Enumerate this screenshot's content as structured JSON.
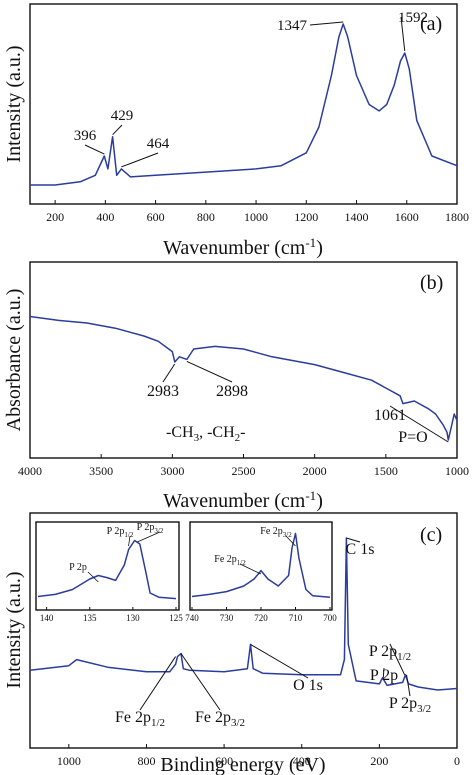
{
  "chart_data": [
    {
      "panel": "(a)",
      "type": "line",
      "title": "",
      "xlabel": "Wavenumber (cm",
      "xlabel_sup": "-1",
      "xlabel_end": ")",
      "ylabel": "Intensity (a.u.)",
      "xlim": [
        100,
        1800
      ],
      "xticks": [
        200,
        400,
        600,
        800,
        1000,
        1200,
        1400,
        1600,
        1800
      ],
      "grid": false,
      "series": [
        {
          "x": [
            100,
            200,
            300,
            360,
            396,
            410,
            429,
            445,
            464,
            500,
            600,
            800,
            1000,
            1100,
            1200,
            1250,
            1300,
            1330,
            1347,
            1365,
            1400,
            1450,
            1490,
            1520,
            1550,
            1575,
            1592,
            1610,
            1640,
            1700,
            1800
          ],
          "y": [
            0.0,
            0.0,
            0.02,
            0.06,
            0.18,
            0.1,
            0.3,
            0.06,
            0.1,
            0.05,
            0.06,
            0.08,
            0.1,
            0.12,
            0.2,
            0.36,
            0.68,
            0.92,
            1.0,
            0.92,
            0.68,
            0.5,
            0.46,
            0.5,
            0.62,
            0.77,
            0.82,
            0.72,
            0.4,
            0.18,
            0.12
          ]
        }
      ],
      "annotations": [
        {
          "text": "396",
          "x": 396,
          "y": 0.18
        },
        {
          "text": "429",
          "x": 429,
          "y": 0.3
        },
        {
          "text": "464",
          "x": 464,
          "y": 0.1
        },
        {
          "text": "1347",
          "x": 1347,
          "y": 1.0
        },
        {
          "text": "1592",
          "x": 1592,
          "y": 0.82
        }
      ]
    },
    {
      "panel": "(b)",
      "type": "line",
      "title": "",
      "xlabel": "Wavenumber (cm",
      "xlabel_sup": "-1",
      "xlabel_end": ")",
      "ylabel": "Absorbance (a.u.)",
      "xlim": [
        4000,
        1000
      ],
      "xticks": [
        4000,
        3500,
        3000,
        2500,
        2000,
        1500,
        1000
      ],
      "grid": false,
      "series": [
        {
          "x": [
            4000,
            3800,
            3600,
            3400,
            3200,
            3100,
            3000,
            2983,
            2950,
            2898,
            2850,
            2700,
            2500,
            2300,
            2000,
            1800,
            1600,
            1500,
            1400,
            1380,
            1300,
            1200,
            1150,
            1100,
            1070,
            1061,
            1040,
            1020,
            1000
          ],
          "y": [
            0.95,
            0.92,
            0.9,
            0.86,
            0.8,
            0.76,
            0.68,
            0.6,
            0.64,
            0.62,
            0.7,
            0.72,
            0.7,
            0.64,
            0.58,
            0.52,
            0.46,
            0.4,
            0.34,
            0.28,
            0.3,
            0.24,
            0.2,
            0.12,
            0.06,
            0.0,
            0.1,
            0.2,
            0.15
          ]
        }
      ],
      "annotations": [
        {
          "text": "2983",
          "x": 2983,
          "y": 0.6
        },
        {
          "text": "2898",
          "x": 2898,
          "y": 0.62
        },
        {
          "text": "1061",
          "x": 1061,
          "y": 0.0
        },
        {
          "text": "P=O",
          "x": 1150,
          "y": 0.0
        },
        {
          "text": "-CH",
          "sub1": "3",
          "mid": ", -CH",
          "sub2": "2",
          "end": "-",
          "x": 2600,
          "y": 0.28
        }
      ]
    },
    {
      "panel": "(c)",
      "type": "line",
      "title": "",
      "xlabel": "Binding energy (eV)",
      "ylabel": "Intensity (a.u.)",
      "xlim": [
        1100,
        0
      ],
      "xticks": [
        1000,
        800,
        600,
        400,
        200,
        0
      ],
      "grid": false,
      "series": [
        {
          "x": [
            1100,
            1000,
            980,
            900,
            800,
            740,
            725,
            720,
            711,
            705,
            690,
            600,
            540,
            532,
            525,
            500,
            400,
            300,
            290,
            285,
            280,
            260,
            200,
            192,
            180,
            140,
            133,
            125,
            100,
            50,
            0
          ],
          "y": [
            0.13,
            0.16,
            0.2,
            0.15,
            0.12,
            0.12,
            0.17,
            0.22,
            0.24,
            0.14,
            0.13,
            0.12,
            0.14,
            0.3,
            0.14,
            0.11,
            0.1,
            0.1,
            0.2,
            1.0,
            0.3,
            0.06,
            0.04,
            0.08,
            0.03,
            0.05,
            0.1,
            0.04,
            0.02,
            0.0,
            0.01
          ]
        }
      ],
      "annotations": [
        {
          "text": "C 1s",
          "x": 285,
          "y": 1.0
        },
        {
          "text": "O 1s",
          "x": 532,
          "y": 0.3
        },
        {
          "text": "Fe 2p",
          "sub": "1/2",
          "x": 725,
          "y": 0.22
        },
        {
          "text": "Fe 2p",
          "sub": "3/2",
          "x": 711,
          "y": 0.24
        },
        {
          "text": "P 2p",
          "x": 190,
          "y": 0.08
        },
        {
          "text": "P 2p",
          "sub": "1/2",
          "x": 135,
          "y": 0.1
        },
        {
          "text": "P 2p",
          "sub": "3/2",
          "x": 130,
          "y": 0.1
        }
      ],
      "insets": [
        {
          "xlim": [
            141,
            125
          ],
          "xticks": [
            140,
            135,
            130,
            125
          ],
          "x": [
            141,
            139,
            137,
            135,
            134,
            133,
            132,
            131,
            130.5,
            129.8,
            129.2,
            128.5,
            128,
            127,
            125
          ],
          "y": [
            0.05,
            0.08,
            0.15,
            0.3,
            0.35,
            0.32,
            0.28,
            0.5,
            0.72,
            0.85,
            0.8,
            0.4,
            0.1,
            0.04,
            0.02
          ],
          "labels": [
            {
              "text": "P 2p",
              "sub": "",
              "x": 134
            },
            {
              "text": "P 2p",
              "sub": "1/2",
              "x": 130.5
            },
            {
              "text": "P 2p",
              "sub": "3/2",
              "x": 129.5
            }
          ]
        },
        {
          "xlim": [
            740,
            700
          ],
          "xticks": [
            740,
            730,
            720,
            710,
            700
          ],
          "x": [
            740,
            735,
            730,
            725,
            722,
            720,
            718,
            715,
            712,
            711,
            710,
            709,
            707,
            705,
            700
          ],
          "y": [
            0.05,
            0.08,
            0.12,
            0.2,
            0.3,
            0.42,
            0.3,
            0.2,
            0.35,
            0.75,
            0.95,
            0.6,
            0.15,
            0.06,
            0.04
          ],
          "labels": [
            {
              "text": "Fe 2p",
              "sub": "1/2",
              "x": 720
            },
            {
              "text": "Fe 2p",
              "sub": "3/2",
              "x": 710
            }
          ]
        }
      ]
    }
  ]
}
